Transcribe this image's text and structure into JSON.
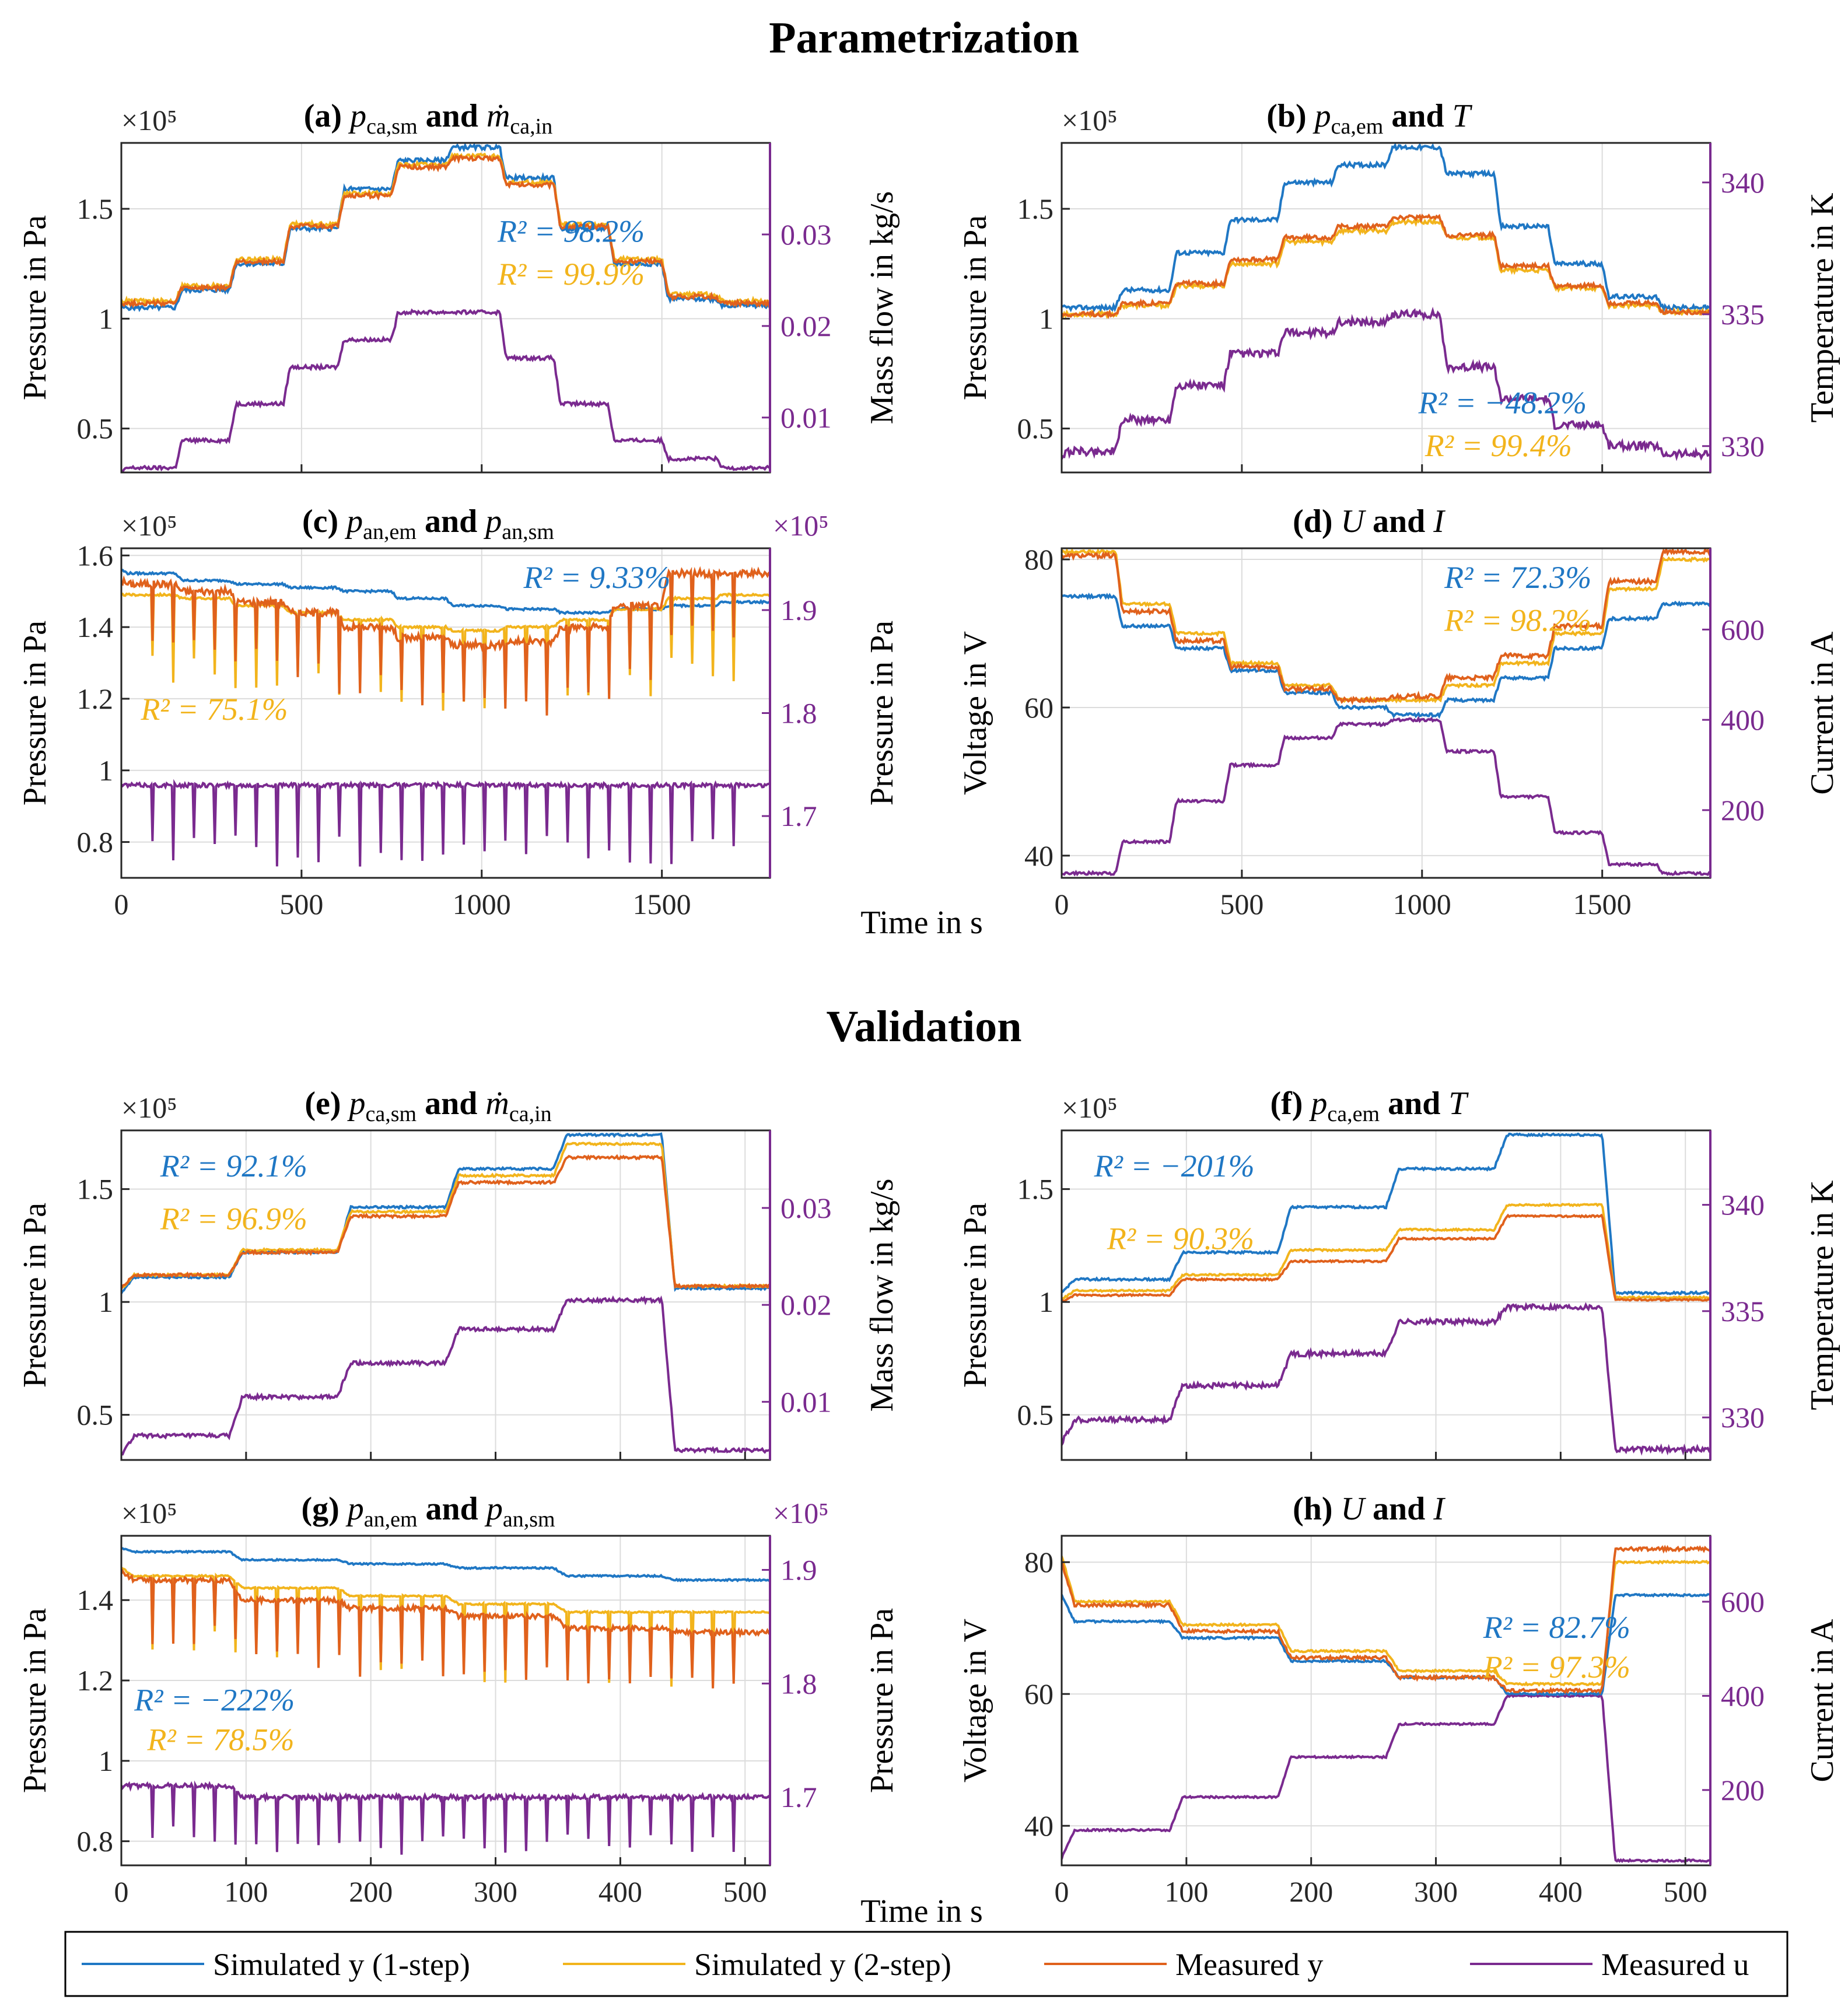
{
  "titles": {
    "parametrization": "Parametrization",
    "validation": "Validation"
  },
  "colors": {
    "sim1": "#1f77c4",
    "sim2": "#f2b41c",
    "meas_y": "#e0611c",
    "meas_u": "#7a2a8f",
    "grid": "#dcdcdc"
  },
  "shared_xlabel": "Time in s",
  "legend": [
    {
      "label": "Simulated y (1-step)",
      "color": "#1f77c4"
    },
    {
      "label": "Simulated y (2-step)",
      "color": "#f2b41c"
    },
    {
      "label": "Measured y",
      "color": "#e0611c"
    },
    {
      "label": "Measured u",
      "color": "#7a2a8f"
    }
  ],
  "chart_data": [
    {
      "id": "a",
      "type": "line",
      "title": "(a) p_ca,sm and ṁ_ca,in",
      "title_tag": "(a)",
      "title_sym1": "p",
      "title_sub1": "ca,sm",
      "title_and": "and",
      "title_sym2": "ṁ",
      "title_sub2": "ca,in",
      "x_range": [
        0,
        1800
      ],
      "x_ticks": [
        0,
        500,
        1000,
        1500
      ],
      "ylabel": "Pressure in Pa",
      "y_exp": "×10⁵",
      "ylim": [
        0.3,
        1.8
      ],
      "yticks": [
        0.5,
        1,
        1.5
      ],
      "ylabel_r": "Mass flow in kg/s",
      "ylim_r": [
        0.004,
        0.04
      ],
      "yticks_r": [
        0.01,
        0.02,
        0.03
      ],
      "r2": [
        {
          "text": "R² = 98.2%",
          "color": "#1f77c4"
        },
        {
          "text": "R² = 99.9%",
          "color": "#f2b41c"
        }
      ],
      "series": [
        {
          "name": "Simulated y (1-step)",
          "color": "#1f77c4",
          "levels": [
            1.05,
            1.05,
            1.13,
            1.25,
            1.41,
            1.59,
            1.72,
            1.78,
            1.64,
            1.41,
            1.25,
            1.09,
            1.06
          ],
          "noise": 0.01
        },
        {
          "name": "Simulated y (2-step)",
          "color": "#f2b41c",
          "levels": [
            1.08,
            1.08,
            1.15,
            1.27,
            1.43,
            1.57,
            1.7,
            1.74,
            1.62,
            1.43,
            1.27,
            1.11,
            1.08
          ],
          "noise": 0.01
        },
        {
          "name": "Measured y",
          "color": "#e0611c",
          "levels": [
            1.07,
            1.07,
            1.14,
            1.26,
            1.42,
            1.56,
            1.69,
            1.73,
            1.61,
            1.42,
            1.26,
            1.1,
            1.07
          ],
          "noise": 0.01
        },
        {
          "name": "Measured u",
          "color": "#7a2a8f",
          "axis": "right",
          "levels": [
            0.004,
            0.0045,
            0.0075,
            0.0115,
            0.0155,
            0.0185,
            0.0215,
            0.0215,
            0.0165,
            0.0115,
            0.0075,
            0.0055,
            0.0045
          ],
          "noise": 0.0002
        }
      ]
    },
    {
      "id": "b",
      "type": "line",
      "title": "(b) p_ca,em and T",
      "title_tag": "(b)",
      "title_sym1": "p",
      "title_sub1": "ca,em",
      "title_and": "and",
      "title_sym2": "T",
      "title_sub2": "",
      "x_range": [
        0,
        1800
      ],
      "x_ticks": [
        0,
        500,
        1000,
        1500
      ],
      "ylabel": "Pressure in Pa",
      "y_exp": "×10⁵",
      "ylim": [
        0.3,
        1.8
      ],
      "yticks": [
        0.5,
        1,
        1.5
      ],
      "ylabel_r": "Temperature in K",
      "ylim_r": [
        329,
        341.5
      ],
      "yticks_r": [
        330,
        335,
        340
      ],
      "r2": [
        {
          "text": "R² = −48.2%",
          "color": "#1f77c4"
        },
        {
          "text": "R² = 99.4%",
          "color": "#f2b41c"
        }
      ],
      "series": [
        {
          "name": "Simulated y (1-step)",
          "color": "#1f77c4",
          "levels": [
            1.05,
            1.05,
            1.13,
            1.3,
            1.45,
            1.62,
            1.7,
            1.78,
            1.66,
            1.42,
            1.25,
            1.1,
            1.05
          ],
          "noise": 0.01
        },
        {
          "name": "Simulated y (2-step)",
          "color": "#f2b41c",
          "levels": [
            1.02,
            1.02,
            1.06,
            1.15,
            1.25,
            1.35,
            1.4,
            1.44,
            1.37,
            1.22,
            1.14,
            1.06,
            1.03
          ],
          "noise": 0.01
        },
        {
          "name": "Measured y",
          "color": "#e0611c",
          "levels": [
            1.02,
            1.02,
            1.07,
            1.16,
            1.27,
            1.37,
            1.42,
            1.46,
            1.38,
            1.24,
            1.15,
            1.07,
            1.03
          ],
          "noise": 0.01
        },
        {
          "name": "Measured u",
          "color": "#7a2a8f",
          "axis": "right",
          "levels": [
            329.6,
            329.8,
            331.0,
            332.3,
            333.5,
            334.3,
            334.7,
            335.0,
            333.0,
            331.8,
            330.8,
            330.0,
            329.7
          ],
          "noise": 0.15
        }
      ]
    },
    {
      "id": "c",
      "type": "line",
      "title": "(c) p_an,em and p_an,sm",
      "title_tag": "(c)",
      "title_sym1": "p",
      "title_sub1": "an,em",
      "title_and": "and",
      "title_sym2": "p",
      "title_sub2": "an,sm",
      "x_range": [
        0,
        1800
      ],
      "x_ticks": [
        0,
        500,
        1000,
        1500
      ],
      "ylabel": "Pressure in Pa",
      "y_exp": "×10⁵",
      "ylim": [
        0.7,
        1.62
      ],
      "yticks": [
        0.8,
        1,
        1.2,
        1.4,
        1.6
      ],
      "ylabel_r": "Pressure in Pa",
      "y_exp_r": "×10⁵",
      "ylim_r": [
        1.64,
        1.96
      ],
      "yticks_r": [
        1.7,
        1.8,
        1.9
      ],
      "r2": [
        {
          "text": "R² = 9.33%",
          "color": "#1f77c4"
        },
        {
          "text": "R² = 75.1%",
          "color": "#f2b41c"
        }
      ],
      "series": [
        {
          "name": "Simulated y (1-step)",
          "color": "#1f77c4",
          "levels": [
            1.56,
            1.55,
            1.53,
            1.52,
            1.51,
            1.5,
            1.48,
            1.46,
            1.45,
            1.44,
            1.45,
            1.46,
            1.47
          ],
          "noise": 0.003
        },
        {
          "name": "Simulated y (2-step)",
          "color": "#f2b41c",
          "levels": [
            1.49,
            1.49,
            1.48,
            1.46,
            1.44,
            1.42,
            1.4,
            1.39,
            1.4,
            1.42,
            1.45,
            1.48,
            1.49
          ],
          "noise": 0.003,
          "spikes": 0.25
        },
        {
          "name": "Measured y",
          "color": "#e0611c",
          "levels": [
            1.53,
            1.52,
            1.5,
            1.47,
            1.44,
            1.4,
            1.37,
            1.35,
            1.36,
            1.4,
            1.46,
            1.55,
            1.55
          ],
          "noise": 0.01,
          "spikes": 0.22
        },
        {
          "name": "Measured u",
          "color": "#7a2a8f",
          "axis": "right",
          "levels": [
            1.73,
            1.73,
            1.73,
            1.73,
            1.73,
            1.73,
            1.73,
            1.73,
            1.73,
            1.73,
            1.73,
            1.73,
            1.73
          ],
          "noise": 0.002,
          "spikes": 0.08
        }
      ]
    },
    {
      "id": "d",
      "type": "line",
      "title": "(d) U and I",
      "title_tag": "(d)",
      "title_sym1": "U",
      "title_sub1": "",
      "title_and": "and",
      "title_sym2": "I",
      "title_sub2": "",
      "x_range": [
        0,
        1800
      ],
      "x_ticks": [
        0,
        500,
        1000,
        1500
      ],
      "ylabel": "Voltage in V",
      "y_exp": "",
      "ylim": [
        37,
        81.5
      ],
      "yticks": [
        40,
        60,
        80
      ],
      "ylabel_r": "Current in A",
      "ylim_r": [
        50,
        780
      ],
      "yticks_r": [
        200,
        400,
        600
      ],
      "r2": [
        {
          "text": "R² = 72.3%",
          "color": "#1f77c4"
        },
        {
          "text": "R² = 98.2%",
          "color": "#f2b41c"
        }
      ],
      "series": [
        {
          "name": "Simulated y (1-step)",
          "color": "#1f77c4",
          "levels": [
            75,
            75,
            71,
            68,
            65,
            62,
            60,
            59,
            61,
            64,
            68,
            72,
            74
          ],
          "noise": 0.2
        },
        {
          "name": "Simulated y (2-step)",
          "color": "#f2b41c",
          "levels": [
            81,
            81,
            74,
            70,
            66,
            63,
            61,
            61,
            63,
            66,
            70,
            76,
            80
          ],
          "noise": 0.2
        },
        {
          "name": "Measured y",
          "color": "#e0611c",
          "levels": [
            80.5,
            80.5,
            73,
            69,
            65.5,
            62.5,
            61,
            61.5,
            64,
            67,
            71,
            77,
            81
          ],
          "noise": 0.3
        },
        {
          "name": "Measured u",
          "color": "#7a2a8f",
          "axis": "right",
          "levels": [
            60,
            60,
            130,
            220,
            300,
            360,
            390,
            400,
            330,
            230,
            150,
            80,
            60
          ],
          "noise": 3
        }
      ]
    },
    {
      "id": "e",
      "type": "line",
      "title": "(e) p_ca,sm and ṁ_ca,in",
      "title_tag": "(e)",
      "title_sym1": "p",
      "title_sub1": "ca,sm",
      "title_and": "and",
      "title_sym2": "ṁ",
      "title_sub2": "ca,in",
      "x_range": [
        0,
        520
      ],
      "x_ticks": [
        0,
        100,
        200,
        300,
        400,
        500
      ],
      "ylabel": "Pressure in Pa",
      "y_exp": "×10⁵",
      "ylim": [
        0.3,
        1.76
      ],
      "yticks": [
        0.5,
        1,
        1.5
      ],
      "ylabel_r": "Mass flow in kg/s",
      "ylim_r": [
        0.004,
        0.038
      ],
      "yticks_r": [
        0.01,
        0.02,
        0.03
      ],
      "r2": [
        {
          "text": "R² = 92.1%",
          "color": "#1f77c4"
        },
        {
          "text": "R² = 96.9%",
          "color": "#f2b41c"
        }
      ],
      "series": [
        {
          "name": "Simulated y (1-step)",
          "color": "#1f77c4",
          "levels": [
            1.04,
            1.11,
            1.22,
            1.42,
            1.59,
            1.74,
            1.06
          ],
          "noise": 0.005
        },
        {
          "name": "Simulated y (2-step)",
          "color": "#f2b41c",
          "levels": [
            1.06,
            1.12,
            1.23,
            1.4,
            1.56,
            1.7,
            1.07
          ],
          "noise": 0.005
        },
        {
          "name": "Measured y",
          "color": "#e0611c",
          "levels": [
            1.06,
            1.12,
            1.22,
            1.38,
            1.53,
            1.64,
            1.07
          ],
          "noise": 0.006
        },
        {
          "name": "Measured u",
          "color": "#7a2a8f",
          "axis": "right",
          "levels": [
            0.0045,
            0.0065,
            0.0105,
            0.014,
            0.0175,
            0.0205,
            0.005
          ],
          "noise": 0.0002
        }
      ]
    },
    {
      "id": "f",
      "type": "line",
      "title": "(f) p_ca,em and T",
      "title_tag": "(f)",
      "title_sym1": "p",
      "title_sub1": "ca,em",
      "title_and": "and",
      "title_sym2": "T",
      "title_sub2": "",
      "x_range": [
        0,
        520
      ],
      "x_ticks": [
        0,
        100,
        200,
        300,
        400,
        500
      ],
      "ylabel": "Pressure in Pa",
      "y_exp": "×10⁵",
      "ylim": [
        0.3,
        1.76
      ],
      "yticks": [
        0.5,
        1,
        1.5
      ],
      "ylabel_r": "Temperature in K",
      "ylim_r": [
        328,
        343.5
      ],
      "yticks_r": [
        330,
        335,
        340
      ],
      "r2": [
        {
          "text": "R² = −201%",
          "color": "#1f77c4"
        },
        {
          "text": "R² = 90.3%",
          "color": "#f2b41c"
        }
      ],
      "series": [
        {
          "name": "Simulated y (1-step)",
          "color": "#1f77c4",
          "levels": [
            1.04,
            1.1,
            1.22,
            1.42,
            1.59,
            1.74,
            1.04
          ],
          "noise": 0.005
        },
        {
          "name": "Simulated y (2-step)",
          "color": "#f2b41c",
          "levels": [
            1.01,
            1.05,
            1.12,
            1.23,
            1.32,
            1.43,
            1.02
          ],
          "noise": 0.004
        },
        {
          "name": "Measured y",
          "color": "#e0611c",
          "levels": [
            1.0,
            1.03,
            1.1,
            1.18,
            1.28,
            1.38,
            1.01
          ],
          "noise": 0.004
        },
        {
          "name": "Measured u",
          "color": "#7a2a8f",
          "axis": "right",
          "levels": [
            328.8,
            329.9,
            331.5,
            333.0,
            334.5,
            335.2,
            328.5
          ],
          "noise": 0.12
        }
      ]
    },
    {
      "id": "g",
      "type": "line",
      "title": "(g) p_an,em and p_an,sm",
      "title_tag": "(g)",
      "title_sym1": "p",
      "title_sub1": "an,em",
      "title_and": "and",
      "title_sym2": "p",
      "title_sub2": "an,sm",
      "x_range": [
        0,
        520
      ],
      "x_ticks": [
        0,
        100,
        200,
        300,
        400,
        500
      ],
      "ylabel": "Pressure in Pa",
      "y_exp": "×10⁵",
      "ylim": [
        0.74,
        1.56
      ],
      "yticks": [
        0.8,
        1,
        1.2,
        1.4
      ],
      "ylabel_r": "Pressure in Pa",
      "y_exp_r": "×10⁵",
      "ylim_r": [
        1.64,
        1.93
      ],
      "yticks_r": [
        1.7,
        1.8,
        1.9
      ],
      "r2": [
        {
          "text": "R² = −222%",
          "color": "#1f77c4"
        },
        {
          "text": "R² = 78.5%",
          "color": "#f2b41c"
        }
      ],
      "series": [
        {
          "name": "Simulated y (1-step)",
          "color": "#1f77c4",
          "levels": [
            1.53,
            1.52,
            1.5,
            1.49,
            1.48,
            1.46,
            1.45
          ],
          "noise": 0.002
        },
        {
          "name": "Simulated y (2-step)",
          "color": "#f2b41c",
          "levels": [
            1.48,
            1.46,
            1.43,
            1.41,
            1.39,
            1.37,
            1.37
          ],
          "noise": 0.002,
          "spikes": 0.2
        },
        {
          "name": "Measured y",
          "color": "#e0611c",
          "levels": [
            1.47,
            1.45,
            1.4,
            1.38,
            1.36,
            1.33,
            1.32
          ],
          "noise": 0.006,
          "spikes": 0.18
        },
        {
          "name": "Measured u",
          "color": "#7a2a8f",
          "axis": "right",
          "levels": [
            1.71,
            1.71,
            1.7,
            1.7,
            1.7,
            1.7,
            1.7
          ],
          "noise": 0.002,
          "spikes": 0.05
        }
      ]
    },
    {
      "id": "h",
      "type": "line",
      "title": "(h) U and I",
      "title_tag": "(h)",
      "title_sym1": "U",
      "title_sub1": "",
      "title_and": "and",
      "title_sym2": "I",
      "title_sub2": "",
      "x_range": [
        0,
        520
      ],
      "x_ticks": [
        0,
        100,
        200,
        300,
        400,
        500
      ],
      "ylabel": "Voltage in V",
      "y_exp": "",
      "ylim": [
        34,
        84
      ],
      "yticks": [
        40,
        60,
        80
      ],
      "ylabel_r": "Current in A",
      "ylim_r": [
        40,
        740
      ],
      "yticks_r": [
        200,
        400,
        600
      ],
      "r2": [
        {
          "text": "R² = 82.7%",
          "color": "#1f77c4"
        },
        {
          "text": "R² = 97.3%",
          "color": "#f2b41c"
        }
      ],
      "series": [
        {
          "name": "Simulated y (1-step)",
          "color": "#1f77c4",
          "levels": [
            75,
            71,
            68.5,
            65,
            62.5,
            60,
            75
          ],
          "noise": 0.15
        },
        {
          "name": "Simulated y (2-step)",
          "color": "#f2b41c",
          "levels": [
            81,
            74,
            70.5,
            66.5,
            63.5,
            61.5,
            80
          ],
          "noise": 0.15
        },
        {
          "name": "Measured y",
          "color": "#e0611c",
          "levels": [
            80,
            73.5,
            69.5,
            65.5,
            62.5,
            60.5,
            82
          ],
          "noise": 0.25
        },
        {
          "name": "Measured u",
          "color": "#7a2a8f",
          "axis": "right",
          "levels": [
            55,
            115,
            185,
            270,
            340,
            400,
            50
          ],
          "noise": 2
        }
      ]
    }
  ]
}
